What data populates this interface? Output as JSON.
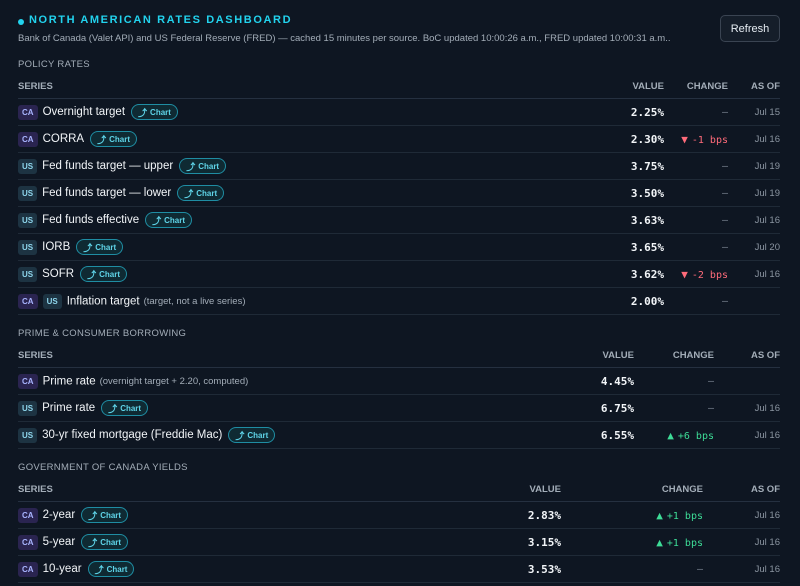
{
  "header": {
    "title": "NORTH AMERICAN RATES DASHBOARD",
    "subtitle": "Bank of Canada (Valet API) and US Federal Reserve (FRED) — cached 15 minutes per source. BoC updated 10:00:26 a.m., FRED updated 10:00:31 a.m..",
    "refresh_label": "Refresh"
  },
  "chart_label": "Chart",
  "columns": {
    "series": "SERIES",
    "value": "VALUE",
    "change": "CHANGE",
    "as_of": "AS OF"
  },
  "sections": {
    "policy": {
      "title": "POLICY RATES",
      "rows": [
        {
          "badges": [
            "CA"
          ],
          "name": "Overnight target",
          "chart": true,
          "value": "2.25%",
          "change": "–",
          "as_of": "Jul 15"
        },
        {
          "badges": [
            "CA"
          ],
          "name": "CORRA",
          "chart": true,
          "value": "2.30%",
          "change": "-1 bps",
          "dir": "down",
          "as_of": "Jul 16"
        },
        {
          "badges": [
            "US"
          ],
          "name": "Fed funds target — upper",
          "chart": true,
          "value": "3.75%",
          "change": "–",
          "as_of": "Jul 19"
        },
        {
          "badges": [
            "US"
          ],
          "name": "Fed funds target — lower",
          "chart": true,
          "value": "3.50%",
          "change": "–",
          "as_of": "Jul 19"
        },
        {
          "badges": [
            "US"
          ],
          "name": "Fed funds effective",
          "chart": true,
          "value": "3.63%",
          "change": "–",
          "as_of": "Jul 16"
        },
        {
          "badges": [
            "US"
          ],
          "name": "IORB",
          "chart": true,
          "value": "3.65%",
          "change": "–",
          "as_of": "Jul 20"
        },
        {
          "badges": [
            "US"
          ],
          "name": "SOFR",
          "chart": true,
          "value": "3.62%",
          "change": "-2 bps",
          "dir": "down",
          "as_of": "Jul 16"
        },
        {
          "badges": [
            "CA",
            "US"
          ],
          "name": "Inflation target",
          "note": "(target, not a live series)",
          "chart": false,
          "value": "2.00%",
          "change": "–",
          "as_of": ""
        }
      ]
    },
    "prime": {
      "title": "PRIME & CONSUMER BORROWING",
      "rows": [
        {
          "badges": [
            "CA"
          ],
          "name": "Prime rate",
          "note": "(overnight target + 2.20, computed)",
          "chart": false,
          "value": "4.45%",
          "change": "–",
          "as_of": ""
        },
        {
          "badges": [
            "US"
          ],
          "name": "Prime rate",
          "chart": true,
          "value": "6.75%",
          "change": "–",
          "as_of": "Jul 16"
        },
        {
          "badges": [
            "US"
          ],
          "name": "30-yr fixed mortgage (Freddie Mac)",
          "chart": true,
          "value": "6.55%",
          "change": "+6 bps",
          "dir": "up",
          "as_of": "Jul 16"
        }
      ]
    },
    "gov": {
      "title": "GOVERNMENT OF CANADA YIELDS",
      "rows": [
        {
          "badges": [
            "CA"
          ],
          "name": "2-year",
          "chart": true,
          "value": "2.83%",
          "change": "+1 bps",
          "dir": "up",
          "as_of": "Jul 16"
        },
        {
          "badges": [
            "CA"
          ],
          "name": "5-year",
          "chart": true,
          "value": "3.15%",
          "change": "+1 bps",
          "dir": "up",
          "as_of": "Jul 16"
        },
        {
          "badges": [
            "CA"
          ],
          "name": "10-year",
          "chart": true,
          "value": "3.53%",
          "change": "–",
          "as_of": "Jul 16"
        }
      ]
    }
  },
  "colors": {
    "accent": "#22d3ee",
    "down": "#ff6b7a",
    "up": "#3ddc97"
  }
}
